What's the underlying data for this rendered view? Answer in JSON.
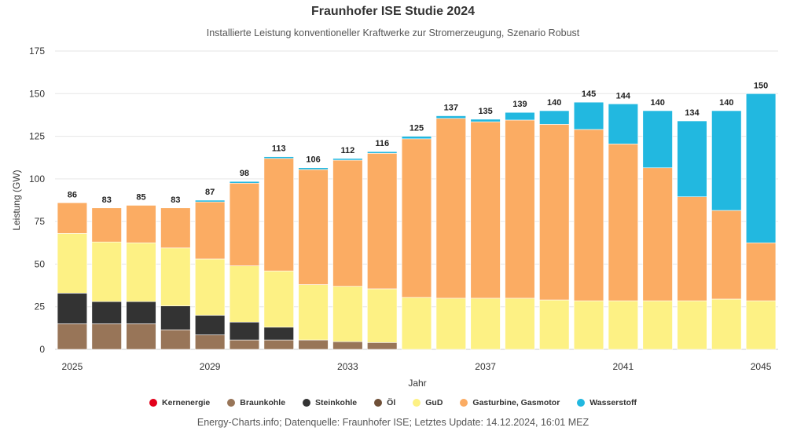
{
  "header": {
    "title": "Fraunhofer ISE Studie 2024",
    "subtitle": "Installierte Leistung konventioneller Kraftwerke zur Stromerzeugung, Szenario Robust"
  },
  "footer": {
    "source": "Energy-Charts.info; Datenquelle: Fraunhofer ISE; Letztes Update: 14.12.2024, 16:01 MEZ"
  },
  "chart_data": {
    "type": "bar",
    "stacked": true,
    "title": "Fraunhofer ISE Studie 2024",
    "subtitle": "Installierte Leistung konventioneller Kraftwerke zur Stromerzeugung, Szenario Robust",
    "xlabel": "Jahr",
    "ylabel": "Leistung (GW)",
    "ylim": [
      0,
      175
    ],
    "yticks": [
      0,
      25,
      50,
      75,
      100,
      125,
      150,
      175
    ],
    "grid": true,
    "legend_position": "bottom",
    "categories": [
      "2025",
      "2026",
      "2027",
      "2028",
      "2029",
      "2030",
      "2031",
      "2032",
      "2033",
      "2034",
      "2035",
      "2036",
      "2037",
      "2038",
      "2039",
      "2040",
      "2041",
      "2042",
      "2043",
      "2044",
      "2045"
    ],
    "xtick_labels": [
      "2025",
      "2029",
      "2033",
      "2037",
      "2041",
      "2045"
    ],
    "totals": [
      86,
      83,
      85,
      83,
      87,
      98,
      113,
      106,
      112,
      116,
      125,
      137,
      135,
      139,
      140,
      145,
      144,
      140,
      134,
      140,
      150
    ],
    "series": [
      {
        "name": "Kernenergie",
        "color": "#e2001a",
        "values": [
          0,
          0,
          0,
          0,
          0,
          0,
          0,
          0,
          0,
          0,
          0,
          0,
          0,
          0,
          0,
          0,
          0,
          0,
          0,
          0,
          0
        ]
      },
      {
        "name": "Braunkohle",
        "color": "#987558",
        "values": [
          15,
          15,
          15,
          11.5,
          8.5,
          5.5,
          5.5,
          5.5,
          4.5,
          4,
          0,
          0,
          0,
          0,
          0,
          0,
          0,
          0,
          0,
          0,
          0
        ]
      },
      {
        "name": "Steinkohle",
        "color": "#333333",
        "values": [
          18,
          13,
          13,
          14,
          11.5,
          10.5,
          7.5,
          0,
          0,
          0,
          0,
          0,
          0,
          0,
          0,
          0,
          0,
          0,
          0,
          0,
          0
        ]
      },
      {
        "name": "Öl",
        "color": "#6f5038",
        "values": [
          0,
          0,
          0,
          0,
          0,
          0,
          0,
          0,
          0,
          0,
          0,
          0,
          0,
          0,
          0,
          0,
          0,
          0,
          0,
          0,
          0
        ]
      },
      {
        "name": "GuD",
        "color": "#fdf184",
        "values": [
          35,
          35,
          34.5,
          34,
          33,
          33,
          33,
          32.5,
          32.5,
          31.5,
          30.5,
          30,
          30,
          30,
          29,
          28.5,
          28.5,
          28.5,
          28.5,
          29.5,
          28.5
        ]
      },
      {
        "name": "Gasturbine, Gasmotor",
        "color": "#fbac63",
        "values": [
          18,
          20,
          22,
          23.5,
          33.5,
          48.5,
          66,
          67.5,
          74,
          79.5,
          93,
          105.5,
          103.5,
          104.5,
          103,
          100.5,
          92,
          78,
          61,
          52,
          34
        ]
      },
      {
        "name": "Wasserstoff",
        "color": "#22b8e0",
        "values": [
          0,
          0,
          0,
          0,
          1,
          1,
          1,
          1,
          1,
          1,
          1.5,
          1.5,
          1.5,
          4.5,
          8,
          16,
          23.5,
          33.5,
          44.5,
          58.5,
          87.5
        ]
      }
    ]
  }
}
